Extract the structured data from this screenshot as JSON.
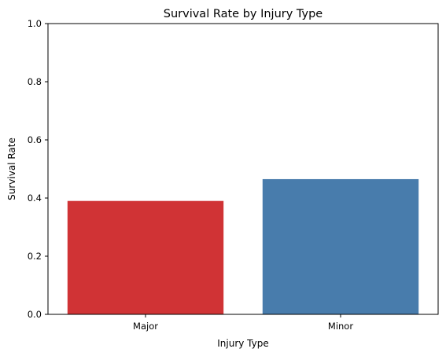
{
  "chart_data": {
    "type": "bar",
    "title": "Survival Rate by Injury Type",
    "xlabel": "Injury Type",
    "ylabel": "Survival Rate",
    "categories": [
      "Major",
      "Minor"
    ],
    "values": [
      0.39,
      0.465
    ],
    "colors": [
      "#d03335",
      "#487cac"
    ],
    "ylim": [
      0,
      1
    ],
    "yticks": [
      "0.0",
      "0.2",
      "0.4",
      "0.6",
      "0.8",
      "1.0"
    ],
    "grid": false,
    "legend": false
  }
}
